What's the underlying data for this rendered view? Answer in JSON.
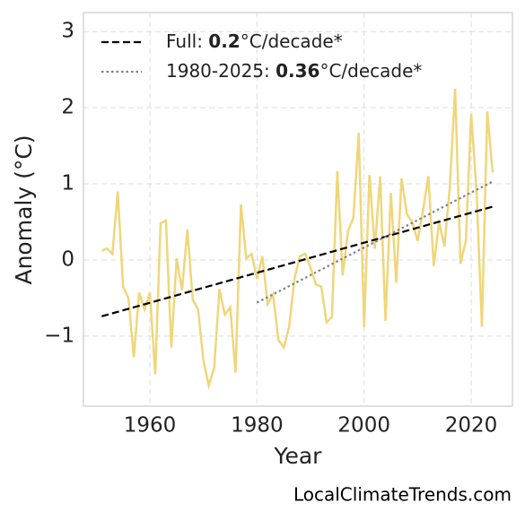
{
  "chart_data": {
    "type": "line",
    "x_label": "Year",
    "y_label": "Anomaly (°C)",
    "watermark": "LocalClimateTrends.com",
    "xlim": [
      1947.6,
      2027.7
    ],
    "ylim": [
      -1.92,
      3.25
    ],
    "xticks": [
      1960,
      1980,
      2000,
      2020
    ],
    "yticks": [
      {
        "value": -1,
        "label": "−1"
      },
      0,
      1,
      2,
      3
    ],
    "grid": true,
    "legend": "upper left",
    "x": [
      1951,
      1952,
      1953,
      1954,
      1955,
      1956,
      1957,
      1958,
      1959,
      1960,
      1961,
      1962,
      1963,
      1964,
      1965,
      1966,
      1967,
      1968,
      1969,
      1970,
      1971,
      1972,
      1973,
      1974,
      1975,
      1976,
      1977,
      1978,
      1979,
      1980,
      1981,
      1982,
      1983,
      1984,
      1985,
      1986,
      1987,
      1988,
      1989,
      1990,
      1991,
      1992,
      1993,
      1994,
      1995,
      1996,
      1997,
      1998,
      1999,
      2000,
      2001,
      2002,
      2003,
      2004,
      2005,
      2006,
      2007,
      2008,
      2009,
      2010,
      2011,
      2012,
      2013,
      2014,
      2015,
      2016,
      2017,
      2018,
      2019,
      2020,
      2021,
      2022,
      2023,
      2024
    ],
    "color": "#f0d67a",
    "values": [
      0.12,
      0.15,
      0.08,
      0.9,
      -0.35,
      -0.5,
      -1.28,
      -0.43,
      -0.65,
      -0.43,
      -1.5,
      0.48,
      0.52,
      -1.15,
      0.02,
      -0.4,
      0.4,
      -0.52,
      -0.65,
      -1.32,
      -1.65,
      -1.42,
      -0.38,
      -0.72,
      -0.62,
      -1.48,
      0.73,
      0.02,
      0.08,
      -0.25,
      0.05,
      -0.58,
      -0.45,
      -1.05,
      -1.15,
      -0.88,
      -0.25,
      0.05,
      0.08,
      -0.1,
      -0.32,
      -0.35,
      -0.82,
      -0.75,
      1.17,
      -0.2,
      0.38,
      0.55,
      1.67,
      -0.88,
      1.12,
      0.15,
      1.1,
      -0.8,
      0.88,
      -0.3,
      1.07,
      0.6,
      0.5,
      0.25,
      0.65,
      1.1,
      -0.08,
      0.5,
      0.18,
      0.95,
      2.25,
      -0.05,
      0.25,
      1.92,
      0.9,
      -0.88,
      1.95,
      1.15
    ],
    "trends": [
      {
        "label_prefix": "Full: ",
        "rate": 0.2,
        "label_suffix": "°C/decade*",
        "style": "dashed",
        "color": "#000000",
        "x": [
          1951,
          2024
        ],
        "values": [
          -0.74,
          0.7
        ]
      },
      {
        "label_prefix": "1980-2025: ",
        "rate": 0.36,
        "label_suffix": "°C/decade*",
        "style": "dotted",
        "color": "#808080",
        "x": [
          1980,
          2024
        ],
        "values": [
          -0.56,
          1.03
        ]
      }
    ]
  }
}
